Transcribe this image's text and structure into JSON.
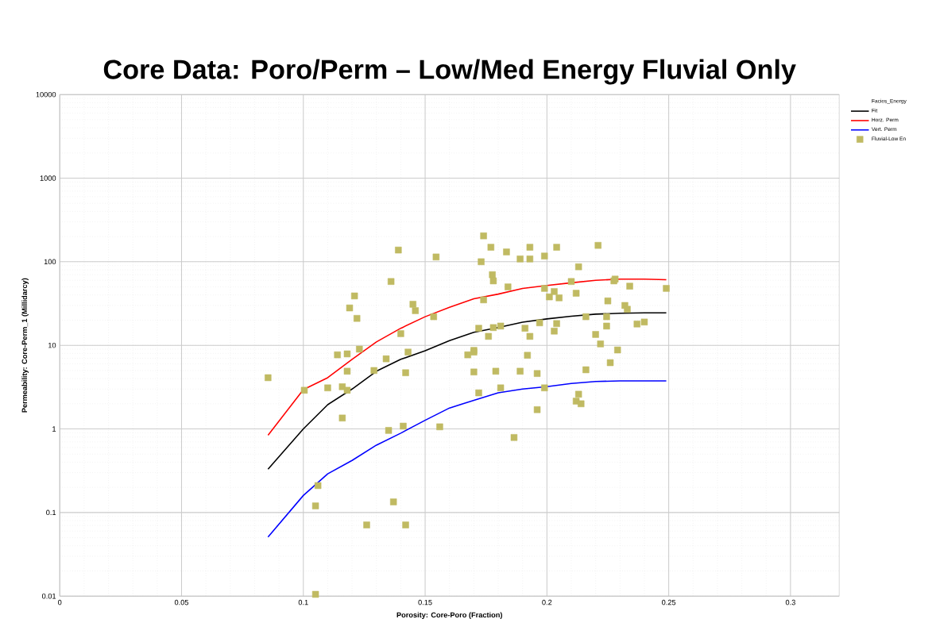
{
  "chart_data": {
    "type": "scatter",
    "title": "Core Data: Poro/Perm – Low/Med Energy Fluvial Only",
    "xlabel": "Porosity: Core-Poro (Fraction)",
    "ylabel": "Permeability: Core-Perm_1 (Millidarcy)",
    "legend_title": "Facies_Energy",
    "xlim": [
      0,
      0.32
    ],
    "ylim": [
      0.01,
      10000
    ],
    "log": "y",
    "grid": true,
    "legend": "right",
    "xticks": [
      0,
      0.05,
      0.1,
      0.15,
      0.2,
      0.25,
      0.3
    ],
    "yticks": [
      0.01,
      0.1,
      1,
      10,
      100,
      1000,
      10000
    ],
    "series": [
      {
        "name": "Fit",
        "type": "line",
        "color": "#000000",
        "marker": "none",
        "x": [
          0.0855,
          0.1,
          0.11,
          0.12,
          0.13,
          0.14,
          0.15,
          0.16,
          0.17,
          0.18,
          0.19,
          0.2,
          0.21,
          0.22,
          0.23,
          0.24,
          0.249
        ],
        "values": [
          0.33,
          1.0,
          1.95,
          3.0,
          4.9,
          6.8,
          8.6,
          11.4,
          14.3,
          16.3,
          18.9,
          20.7,
          22.3,
          23.6,
          24.2,
          24.5,
          24.5
        ]
      },
      {
        "name": "Horz. Perm",
        "type": "line",
        "color": "#ff0000",
        "marker": "none",
        "x": [
          0.0855,
          0.1,
          0.11,
          0.12,
          0.13,
          0.14,
          0.15,
          0.16,
          0.17,
          0.18,
          0.19,
          0.2,
          0.21,
          0.22,
          0.23,
          0.24,
          0.249
        ],
        "values": [
          0.84,
          2.95,
          4.1,
          6.8,
          11,
          16,
          22,
          28.5,
          36,
          41,
          48,
          52,
          56,
          60,
          62,
          62,
          61
        ]
      },
      {
        "name": "Vert. Perm",
        "type": "line",
        "color": "#0000ff",
        "marker": "none",
        "x": [
          0.0855,
          0.1,
          0.11,
          0.12,
          0.13,
          0.14,
          0.15,
          0.16,
          0.17,
          0.18,
          0.19,
          0.2,
          0.21,
          0.22,
          0.23,
          0.24,
          0.249
        ],
        "values": [
          0.051,
          0.16,
          0.29,
          0.42,
          0.64,
          0.89,
          1.27,
          1.78,
          2.2,
          2.7,
          3.0,
          3.2,
          3.5,
          3.7,
          3.75,
          3.75,
          3.75
        ]
      },
      {
        "name": "Fluvial-Low En",
        "color": "#c0ba62",
        "marker": "square",
        "x": [
          0.0855,
          0.1004,
          0.11,
          0.114,
          0.118,
          0.116,
          0.118,
          0.118,
          0.116,
          0.119,
          0.121,
          0.122,
          0.123,
          0.129,
          0.134,
          0.135,
          0.136,
          0.137,
          0.139,
          0.14,
          0.141,
          0.142,
          0.143,
          0.142,
          0.145,
          0.146,
          0.126,
          0.106,
          0.105,
          0.105,
          0.1535,
          0.1545,
          0.156,
          0.174,
          0.177,
          0.1834,
          0.193,
          0.204,
          0.221,
          0.173,
          0.189,
          0.193,
          0.199,
          0.1776,
          0.178,
          0.184,
          0.213,
          0.174,
          0.199,
          0.201,
          0.203,
          0.205,
          0.212,
          0.21,
          0.2275,
          0.228,
          0.234,
          0.249,
          0.225,
          0.232,
          0.233,
          0.237,
          0.24,
          0.216,
          0.2245,
          0.2245,
          0.22,
          0.222,
          0.229,
          0.226,
          0.216,
          0.213,
          0.212,
          0.214,
          0.196,
          0.1865,
          0.172,
          0.176,
          0.178,
          0.181,
          0.191,
          0.197,
          0.204,
          0.193,
          0.203,
          0.1675,
          0.17,
          0.17,
          0.192,
          0.17,
          0.179,
          0.189,
          0.196,
          0.172,
          0.181,
          0.199
        ],
        "values": [
          4.1,
          2.9,
          3.1,
          7.7,
          7.9,
          3.2,
          2.9,
          4.9,
          1.35,
          28,
          39,
          21,
          9,
          5,
          6.9,
          0.96,
          58,
          0.134,
          138,
          13.8,
          1.08,
          4.7,
          8.3,
          0.071,
          31,
          26,
          0.071,
          0.21,
          0.12,
          0.0105,
          22,
          114,
          1.06,
          204,
          149,
          131,
          149,
          149,
          157,
          100,
          108,
          108,
          117,
          70,
          59,
          50,
          87,
          35,
          48,
          38,
          44,
          37,
          42,
          58,
          59,
          62,
          51,
          48,
          34,
          30,
          27,
          18,
          19,
          22,
          22,
          17,
          13.5,
          10.4,
          8.8,
          6.2,
          5.1,
          2.6,
          2.15,
          2.0,
          1.7,
          0.79,
          16,
          12.8,
          16.3,
          17,
          16,
          18.6,
          18.2,
          12.8,
          14.8,
          7.7,
          8.7,
          8.3,
          7.6,
          4.8,
          4.9,
          4.9,
          4.6,
          2.7,
          3.1,
          3.1
        ]
      }
    ]
  }
}
